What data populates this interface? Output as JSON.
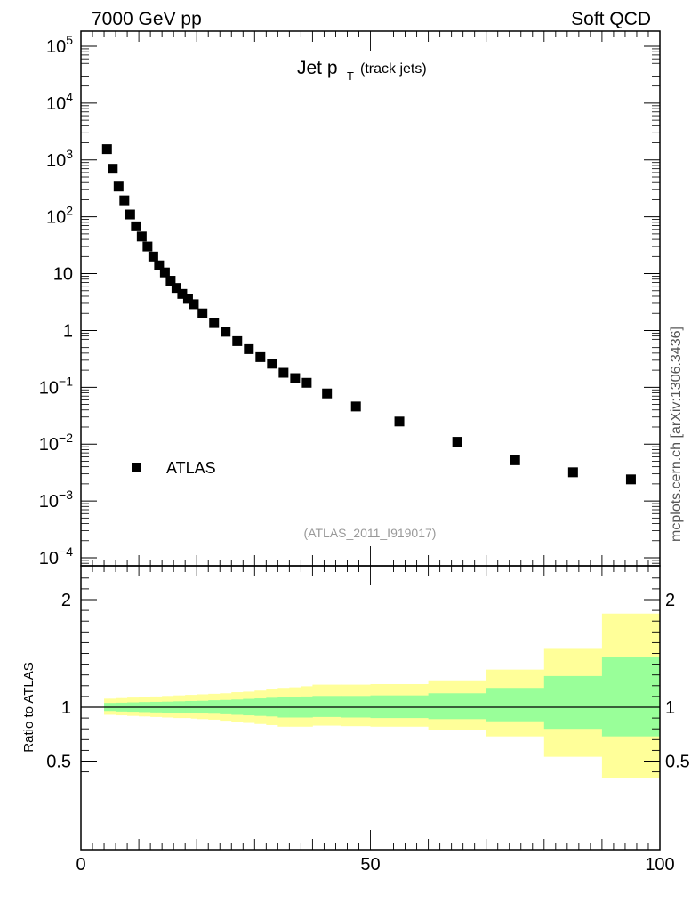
{
  "header": {
    "left": "7000 GeV pp",
    "right": "Soft QCD"
  },
  "plot_title": {
    "main": "Jet p",
    "sub": "T",
    "note": "(track jets)"
  },
  "watermark": "mcplots.cern.ch [arXiv:1306.3436]",
  "reference": "(ATLAS_2011_I919017)",
  "colors": {
    "marker": "#000000",
    "band_outer": "#ffff99",
    "band_inner": "#99ff99",
    "frame": "#000000"
  },
  "chart_data": [
    {
      "type": "scatter",
      "panel": "main",
      "title": "Jet pT (track jets)",
      "xlim": [
        0,
        100
      ],
      "ylim": [
        0.0001,
        200000
      ],
      "yscale": "log",
      "legend_position": "bottom-left",
      "y_tick_labels": [
        "10^5",
        "10^4",
        "10^3",
        "10^2",
        "10",
        "1",
        "10^-1",
        "10^-2",
        "10^-3",
        "10^-4"
      ],
      "series": [
        {
          "name": "ATLAS",
          "x": [
            4.5,
            5.5,
            6.5,
            7.5,
            8.5,
            9.5,
            10.5,
            11.5,
            12.5,
            13.5,
            14.5,
            15.5,
            16.5,
            17.5,
            18.5,
            19.5,
            21,
            23,
            25,
            27,
            29,
            31,
            33,
            35,
            37,
            39,
            42.5,
            47.5,
            55,
            65,
            75,
            85,
            95
          ],
          "y": [
            1550,
            700,
            340,
            195,
            110,
            68,
            45,
            30,
            20,
            14,
            10.5,
            7.5,
            5.6,
            4.4,
            3.6,
            2.9,
            2.0,
            1.35,
            0.95,
            0.65,
            0.47,
            0.34,
            0.26,
            0.18,
            0.145,
            0.12,
            0.078,
            0.046,
            0.025,
            0.011,
            0.0052,
            0.0032,
            0.0024
          ]
        }
      ]
    },
    {
      "type": "area",
      "panel": "ratio",
      "ylabel": "Ratio to ATLAS",
      "xlim": [
        0,
        100
      ],
      "ylim": [
        0.35,
        2.25
      ],
      "x_tick_labels": [
        "0",
        "50",
        "100"
      ],
      "y_tick_labels": [
        "0.5",
        "1",
        "2"
      ],
      "reference_line": 1,
      "bins": [
        4,
        5,
        6,
        7,
        8,
        9,
        10,
        11,
        12,
        13,
        14,
        15,
        16,
        17,
        18,
        19,
        20,
        22,
        24,
        26,
        28,
        30,
        32,
        34,
        36,
        38,
        40,
        45,
        50,
        60,
        70,
        80,
        90,
        100
      ],
      "series": [
        {
          "name": "outer band",
          "lower": [
            0.93,
            0.93,
            0.925,
            0.925,
            0.92,
            0.92,
            0.915,
            0.915,
            0.91,
            0.91,
            0.905,
            0.905,
            0.9,
            0.9,
            0.9,
            0.895,
            0.89,
            0.885,
            0.875,
            0.865,
            0.855,
            0.845,
            0.835,
            0.82,
            0.82,
            0.82,
            0.83,
            0.825,
            0.82,
            0.79,
            0.73,
            0.54,
            0.34
          ],
          "upper": [
            1.08,
            1.08,
            1.085,
            1.085,
            1.09,
            1.09,
            1.095,
            1.095,
            1.1,
            1.1,
            1.105,
            1.105,
            1.11,
            1.11,
            1.115,
            1.115,
            1.12,
            1.125,
            1.13,
            1.14,
            1.145,
            1.155,
            1.165,
            1.18,
            1.185,
            1.195,
            1.21,
            1.21,
            1.215,
            1.25,
            1.35,
            1.55,
            1.87
          ]
        },
        {
          "name": "inner band",
          "lower": [
            0.965,
            0.965,
            0.96,
            0.96,
            0.958,
            0.958,
            0.955,
            0.955,
            0.952,
            0.952,
            0.95,
            0.95,
            0.948,
            0.948,
            0.945,
            0.945,
            0.942,
            0.94,
            0.935,
            0.93,
            0.925,
            0.92,
            0.915,
            0.905,
            0.905,
            0.905,
            0.91,
            0.905,
            0.9,
            0.89,
            0.87,
            0.8,
            0.73
          ],
          "upper": [
            1.04,
            1.04,
            1.042,
            1.042,
            1.045,
            1.045,
            1.048,
            1.048,
            1.05,
            1.05,
            1.052,
            1.052,
            1.055,
            1.055,
            1.058,
            1.058,
            1.06,
            1.065,
            1.068,
            1.072,
            1.078,
            1.082,
            1.088,
            1.095,
            1.095,
            1.1,
            1.105,
            1.105,
            1.11,
            1.13,
            1.18,
            1.29,
            1.47
          ]
        }
      ]
    }
  ]
}
